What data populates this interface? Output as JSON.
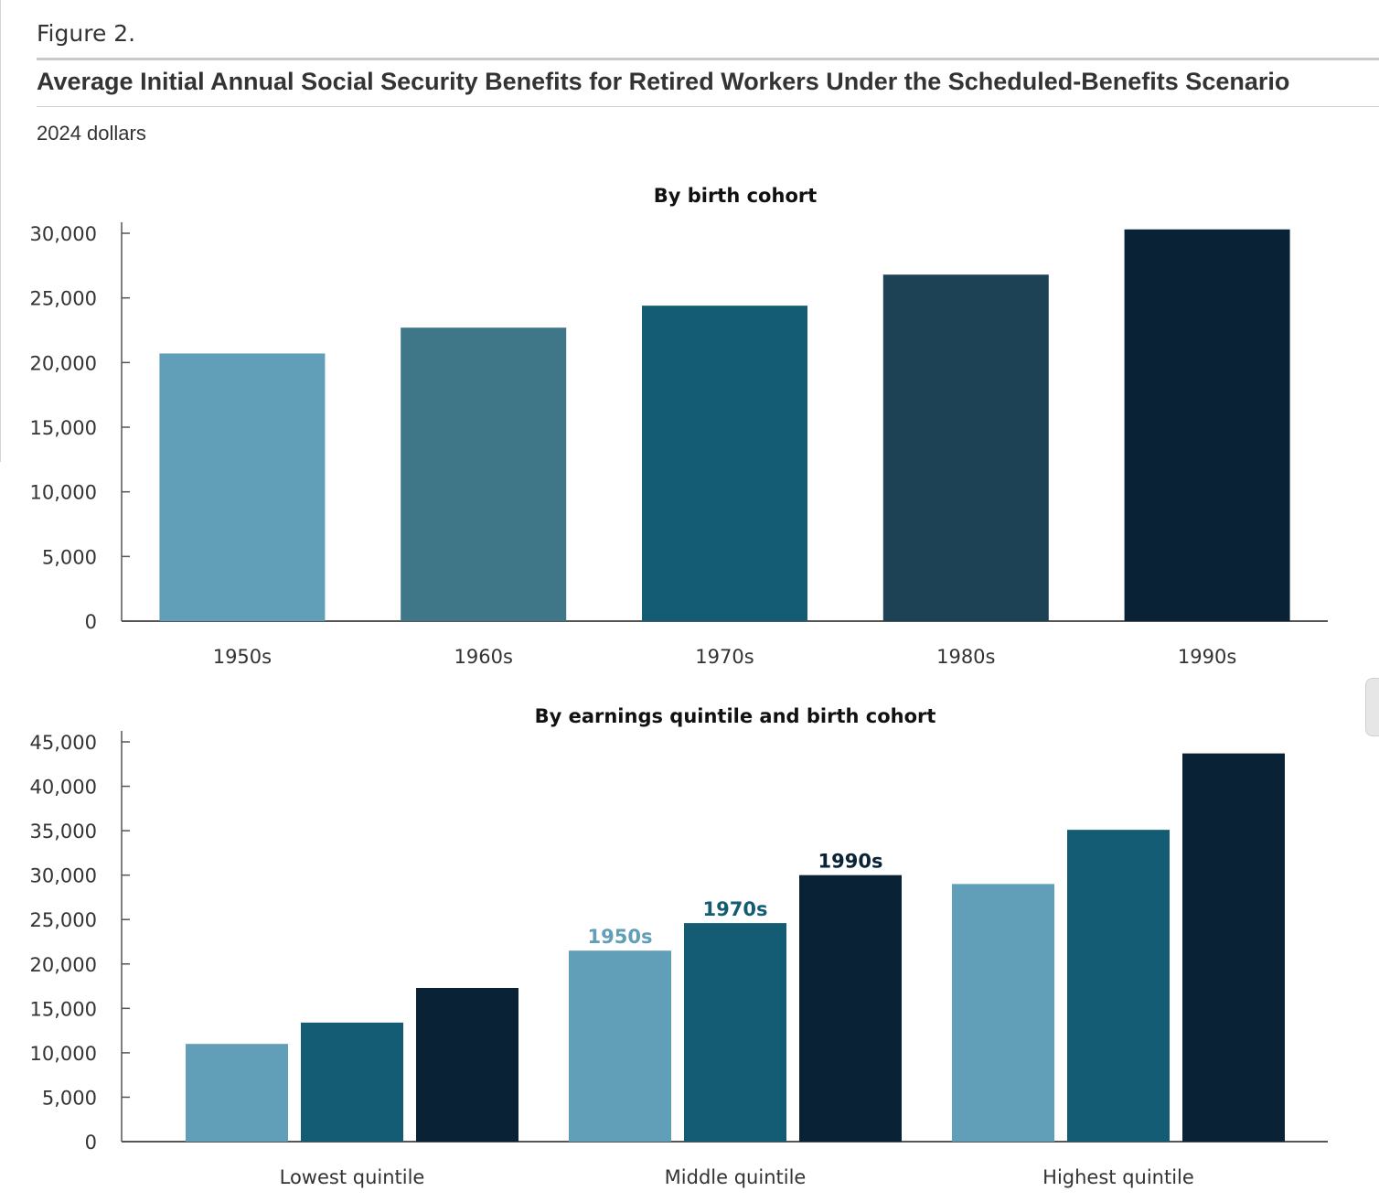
{
  "figure_label": "Figure 2.",
  "title": "Average Initial Annual Social Security Benefits for Retired Workers Under the Scheduled-Benefits Scenario",
  "subtitle": "2024 dollars",
  "colors": {
    "c1950s": "#619eb7",
    "c1960s": "#3f7788",
    "c1970s": "#135c73",
    "c1980s": "#1d4155",
    "c1990s": "#092235",
    "axis": "#555555"
  },
  "chart_data": [
    {
      "type": "bar",
      "title": "By birth cohort",
      "categories": [
        "1950s",
        "1960s",
        "1970s",
        "1980s",
        "1990s"
      ],
      "values": [
        20700,
        22700,
        24400,
        26800,
        30300
      ],
      "bar_colors": [
        "#619eb7",
        "#3f7788",
        "#135c73",
        "#1d4155",
        "#092235"
      ],
      "ylim": [
        0,
        30000
      ],
      "yticks": [
        "0",
        "5,000",
        "10,000",
        "15,000",
        "20,000",
        "25,000",
        "30,000"
      ],
      "xlabel": "",
      "ylabel": "",
      "grid": false
    },
    {
      "type": "bar",
      "title": "By earnings quintile and birth cohort",
      "categories": [
        "Lowest quintile",
        "Middle quintile",
        "Highest quintile"
      ],
      "series": [
        {
          "name": "1950s",
          "values": [
            11000,
            21500,
            29000
          ],
          "color": "#619eb7"
        },
        {
          "name": "1970s",
          "values": [
            13400,
            24600,
            35100
          ],
          "color": "#135c73"
        },
        {
          "name": "1990s",
          "values": [
            17300,
            30000,
            43700
          ],
          "color": "#092235"
        }
      ],
      "ylim": [
        0,
        45000
      ],
      "yticks": [
        "0",
        "5,000",
        "10,000",
        "15,000",
        "20,000",
        "25,000",
        "30,000",
        "35,000",
        "40,000",
        "45,000"
      ],
      "labeled_category": "Middle quintile",
      "xlabel": "",
      "ylabel": "",
      "grid": false
    }
  ]
}
